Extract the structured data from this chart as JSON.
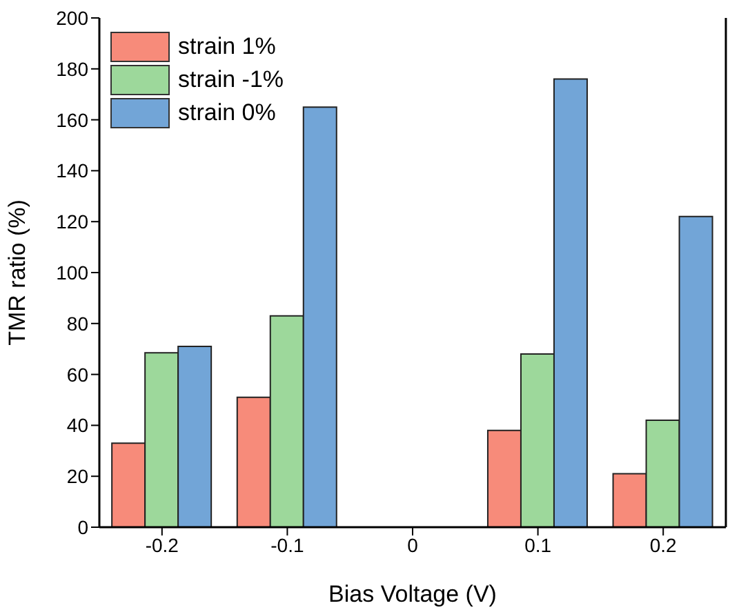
{
  "chart_data": {
    "type": "bar",
    "xlabel": "Bias Voltage (V)",
    "ylabel": "TMR ratio (%)",
    "categories": [
      "-0.2",
      "-0.1",
      "0",
      "0.1",
      "0.2"
    ],
    "series": [
      {
        "name": "strain 1%",
        "color": "#f78b7a",
        "values": [
          33,
          51,
          null,
          38,
          21
        ]
      },
      {
        "name": "strain -1%",
        "color": "#9dd89b",
        "values": [
          68.5,
          83,
          null,
          68,
          42
        ]
      },
      {
        "name": "strain 0%",
        "color": "#72a5d7",
        "values": [
          71,
          165,
          null,
          176,
          122
        ]
      }
    ],
    "ylim": [
      0,
      200
    ],
    "yticks": [
      0,
      20,
      40,
      60,
      80,
      100,
      120,
      140,
      160,
      180,
      200
    ],
    "legend": "top left"
  }
}
